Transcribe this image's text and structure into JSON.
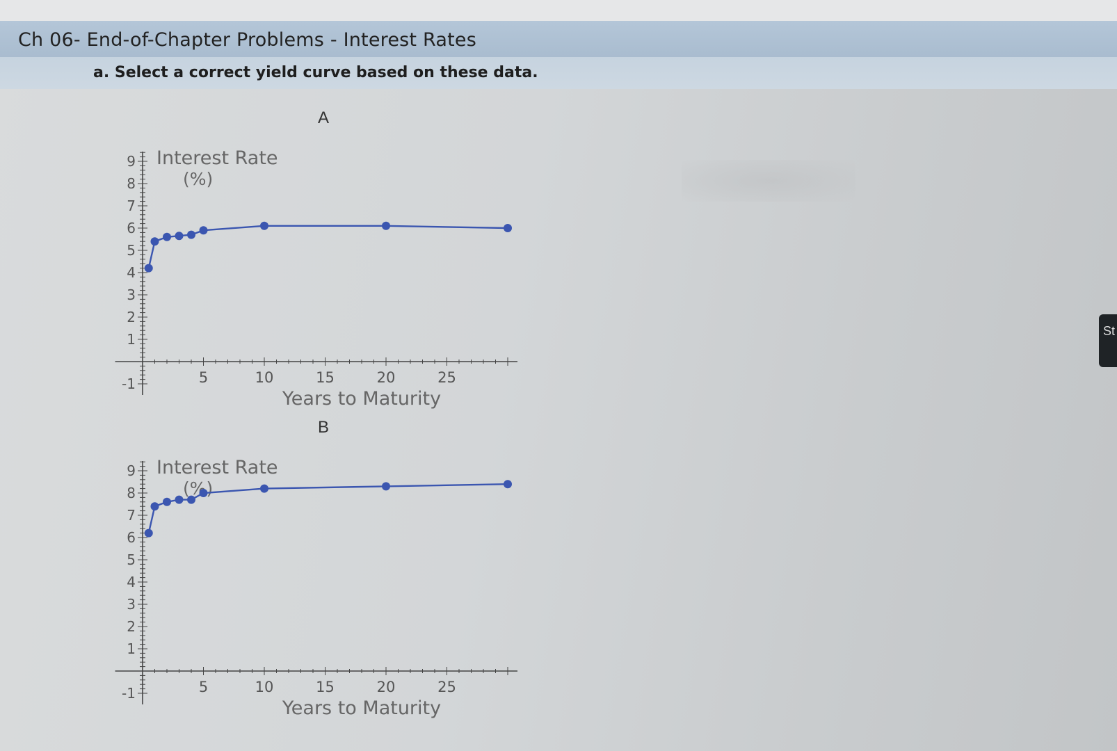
{
  "window": {
    "title": "Ch 06- End-of-Chapter Problems - Interest Rates"
  },
  "question": {
    "prompt": "a. Select a correct yield curve based on these data."
  },
  "side_tab": {
    "label": "St"
  },
  "colors": {
    "curve": "#3b56b0",
    "axis": "#444444",
    "title_bar": "#b0c3d6"
  },
  "chart_data": [
    {
      "type": "line",
      "label": "A",
      "xlabel": "Years to Maturity",
      "ylabel_line1": "Interest Rate",
      "ylabel_line2": "(%)",
      "xlim": [
        -1,
        30
      ],
      "ylim": [
        -1,
        9
      ],
      "xticks": [
        5,
        10,
        15,
        20,
        25
      ],
      "yticks": [
        -1,
        1,
        2,
        3,
        4,
        5,
        6,
        7,
        8,
        9
      ],
      "x": [
        0.5,
        1,
        2,
        3,
        4,
        5,
        10,
        20,
        30
      ],
      "y": [
        4.2,
        5.4,
        5.6,
        5.65,
        5.7,
        5.9,
        6.1,
        6.1,
        6.0
      ]
    },
    {
      "type": "line",
      "label": "B",
      "xlabel": "Years to Maturity",
      "ylabel_line1": "Interest Rate",
      "ylabel_line2": "(%)",
      "xlim": [
        -1,
        30
      ],
      "ylim": [
        -1,
        9
      ],
      "xticks": [
        5,
        10,
        15,
        20,
        25
      ],
      "yticks": [
        -1,
        1,
        2,
        3,
        4,
        5,
        6,
        7,
        8,
        9
      ],
      "x": [
        0.5,
        1,
        2,
        3,
        4,
        5,
        10,
        20,
        30
      ],
      "y": [
        6.2,
        7.4,
        7.6,
        7.7,
        7.7,
        8.0,
        8.2,
        8.3,
        8.4
      ]
    }
  ]
}
